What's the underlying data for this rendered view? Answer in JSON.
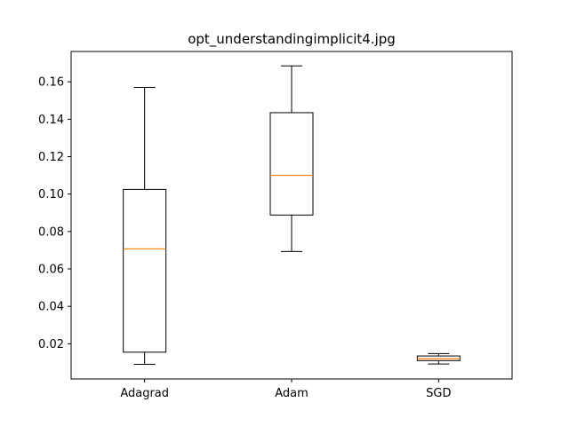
{
  "chart_data": {
    "type": "box",
    "title": "opt_understandingimplicit4.jpg",
    "xlabel": "",
    "ylabel": "",
    "categories": [
      "Adagrad",
      "Adam",
      "SGD"
    ],
    "boxes": [
      {
        "category": "Adagrad",
        "whisker_low": 0.009,
        "q1": 0.0155,
        "median": 0.0707,
        "q3": 0.1025,
        "whisker_high": 0.157
      },
      {
        "category": "Adam",
        "whisker_low": 0.0693,
        "q1": 0.0888,
        "median": 0.11,
        "q3": 0.1435,
        "whisker_high": 0.1685
      },
      {
        "category": "SGD",
        "whisker_low": 0.0092,
        "q1": 0.011,
        "median": 0.012,
        "q3": 0.0135,
        "whisker_high": 0.0148
      }
    ],
    "yticks": [
      0.02,
      0.04,
      0.06,
      0.08,
      0.1,
      0.12,
      0.14,
      0.16
    ],
    "ytick_labels": [
      "0.02",
      "0.04",
      "0.06",
      "0.08",
      "0.10",
      "0.12",
      "0.14",
      "0.16"
    ],
    "ylim": [
      0.0012,
      0.1762
    ],
    "grid": false,
    "colors": {
      "box": "#000000",
      "median": "#ff7f0e",
      "axes": "#000000"
    }
  }
}
